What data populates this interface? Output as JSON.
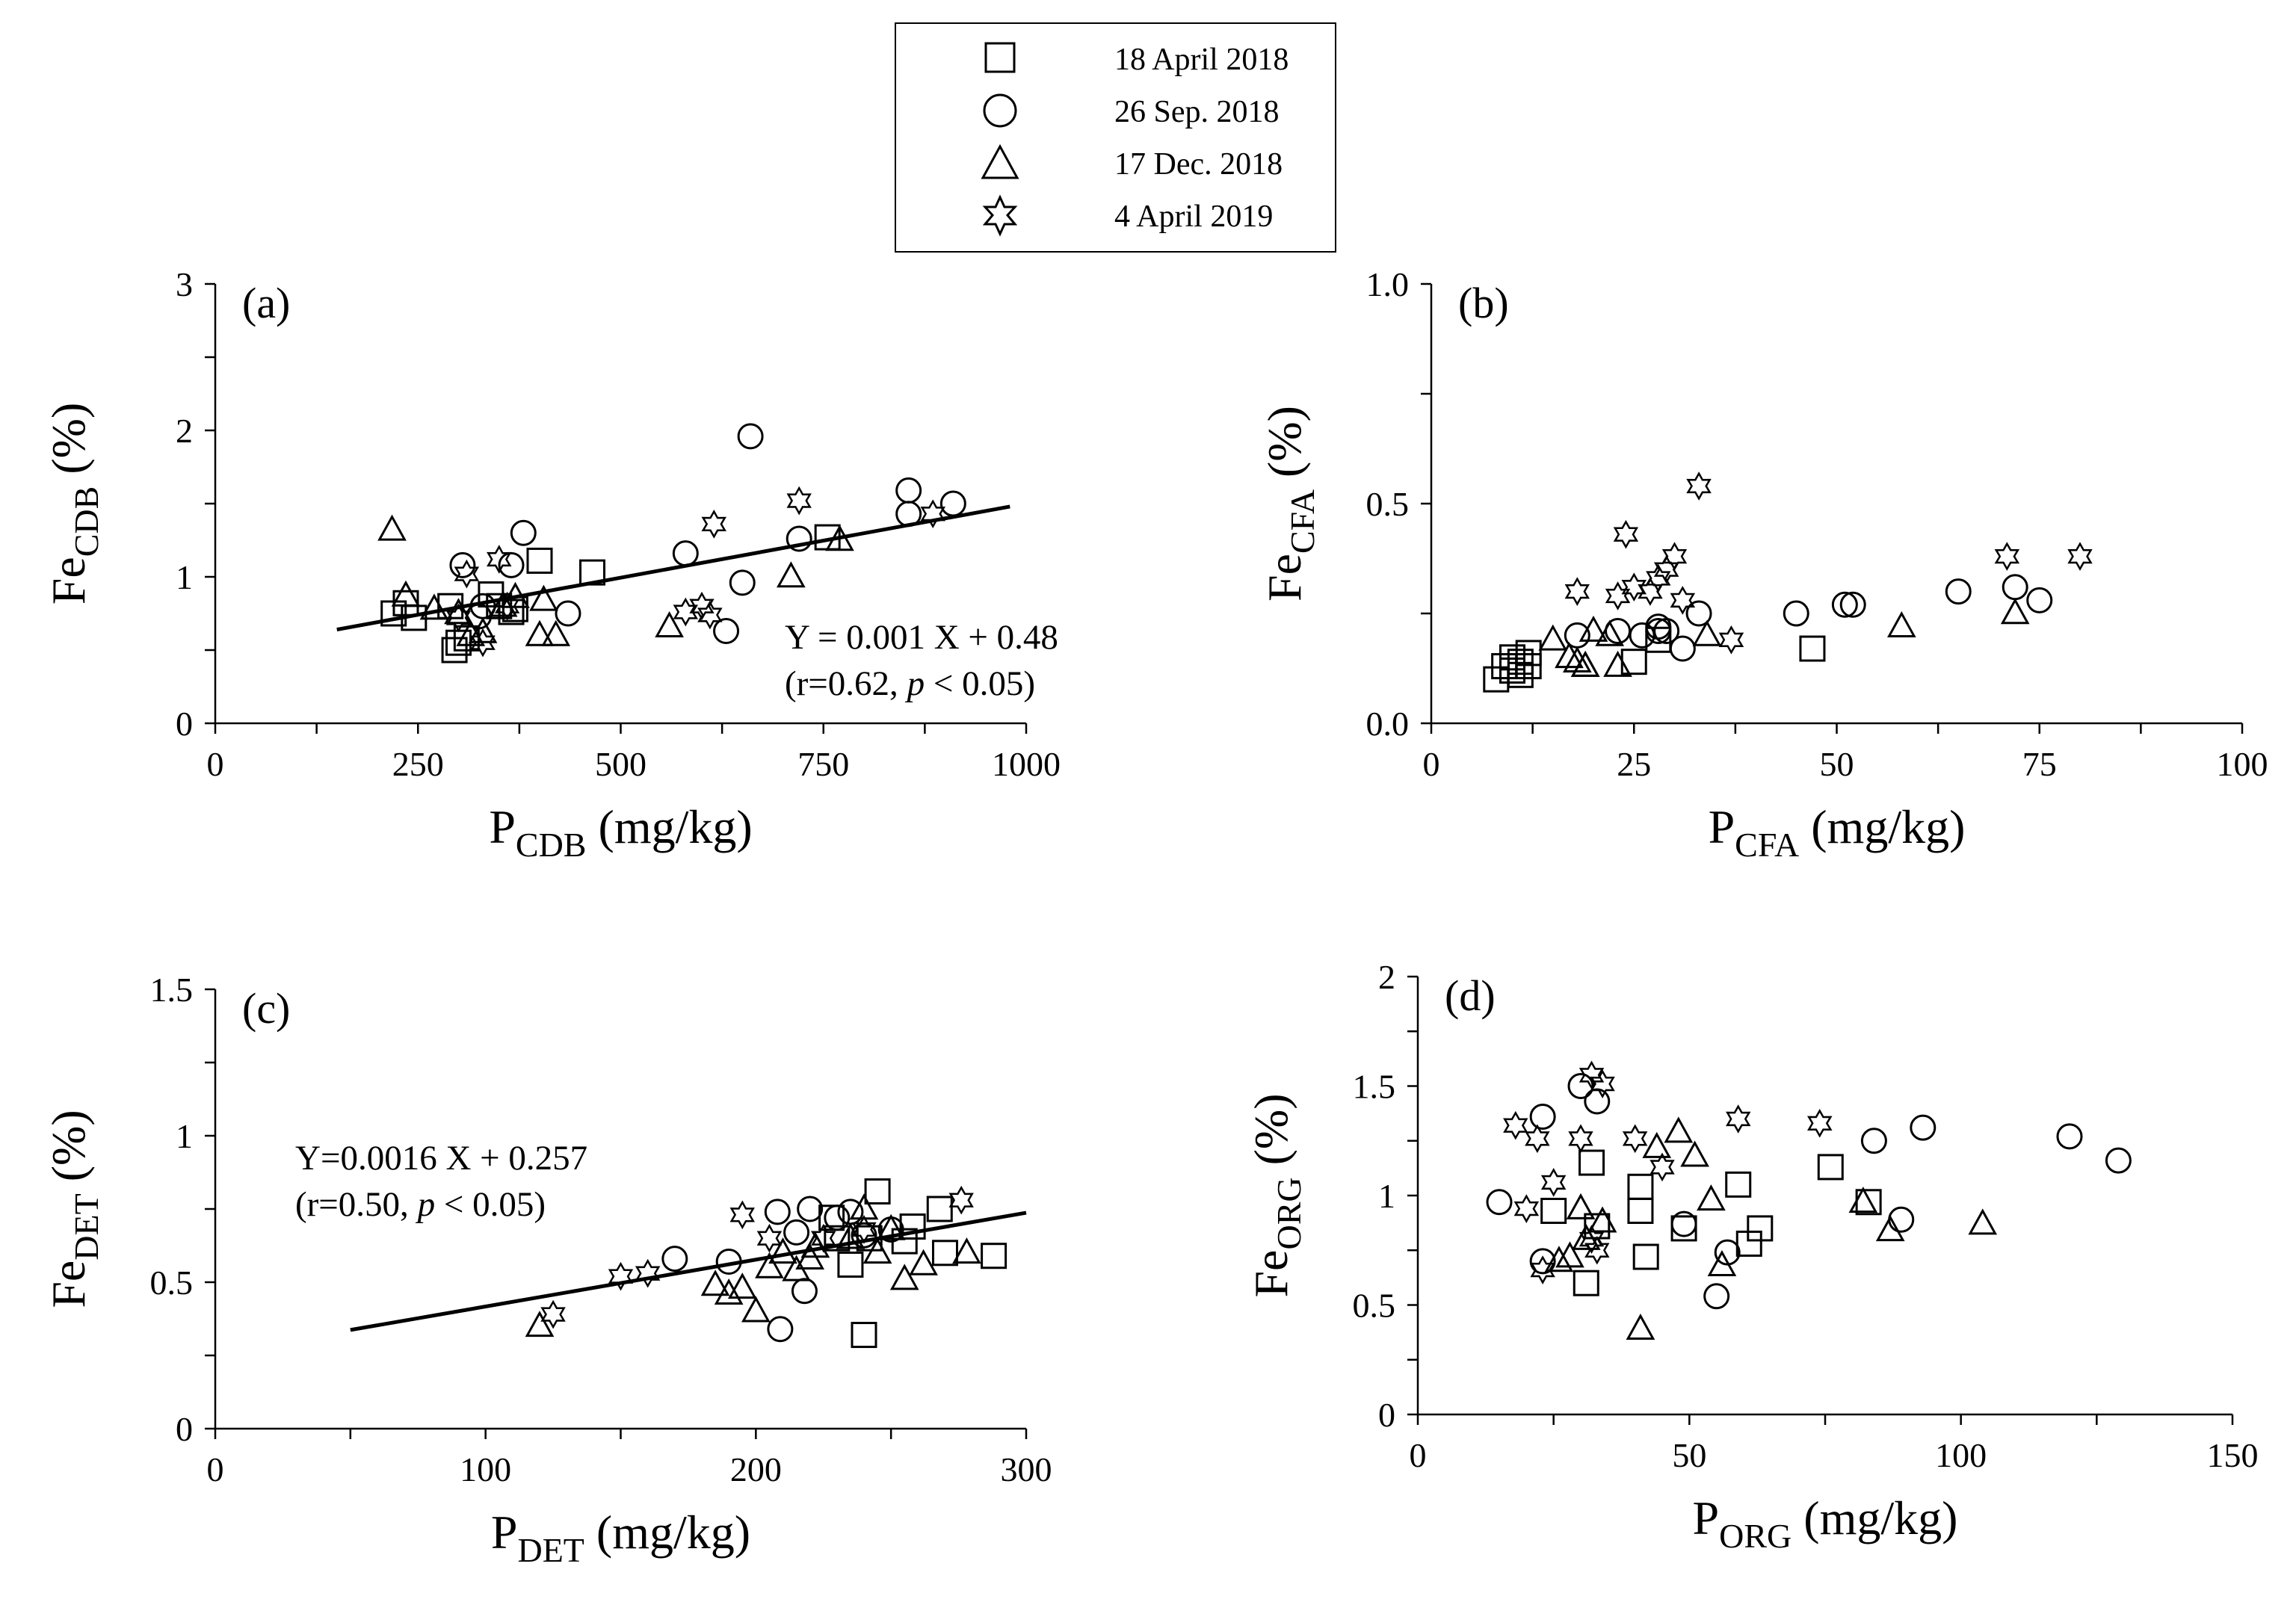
{
  "legend": {
    "entries": [
      {
        "label": "18 April 2018",
        "marker": "square"
      },
      {
        "label": "26 Sep. 2018",
        "marker": "circle"
      },
      {
        "label": "17 Dec. 2018",
        "marker": "triangle"
      },
      {
        "label": "4 April 2019",
        "marker": "star"
      }
    ]
  },
  "chart_data": [
    {
      "type": "scatter",
      "panel_label": "(a)",
      "xlabel": {
        "main": "P",
        "sub": "CDB",
        "unit": " (mg/kg)"
      },
      "ylabel": {
        "main": "Fe",
        "sub": "CDB",
        "unit": " (%)"
      },
      "xlim": [
        0,
        1000
      ],
      "ylim": [
        0,
        3
      ],
      "xticks": [
        "0",
        "250",
        "500",
        "750",
        "1000"
      ],
      "xtick_values": [
        0,
        250,
        500,
        750,
        1000
      ],
      "yticks": [
        "0",
        "1",
        "2",
        "3"
      ],
      "ytick_values": [
        0,
        1,
        2,
        3
      ],
      "xminor": 125,
      "yminor": 0.5,
      "regression": {
        "x": [
          150,
          980
        ],
        "y": [
          0.64,
          1.48
        ]
      },
      "annotation": {
        "line1": "Y = 0.001 X + 0.48",
        "line2_pre": "(r=0.62, ",
        "line2_p": "p",
        "line2_post": " < 0.05)"
      },
      "series": [
        {
          "name": "18 April 2018",
          "marker": "square",
          "x": [
            220,
            235,
            245,
            290,
            295,
            300,
            310,
            340,
            350,
            365,
            370,
            400,
            465,
            755
          ],
          "y": [
            0.75,
            0.82,
            0.72,
            0.8,
            0.5,
            0.55,
            0.58,
            0.88,
            0.8,
            0.76,
            0.78,
            1.11,
            1.03,
            1.27
          ]
        },
        {
          "name": "26 Sep. 2018",
          "marker": "circle",
          "x": [
            305,
            325,
            330,
            365,
            380,
            435,
            580,
            630,
            650,
            660,
            720,
            855,
            855,
            910
          ],
          "y": [
            1.08,
            0.73,
            0.8,
            1.08,
            1.3,
            0.75,
            1.16,
            0.63,
            0.96,
            1.96,
            1.26,
            1.43,
            1.59,
            1.5
          ]
        },
        {
          "name": "17 Dec. 2018",
          "marker": "triangle",
          "x": [
            218,
            235,
            270,
            300,
            315,
            330,
            355,
            370,
            400,
            405,
            420,
            560,
            710,
            770
          ],
          "y": [
            1.32,
            0.87,
            0.78,
            0.75,
            0.6,
            0.62,
            0.8,
            0.86,
            0.6,
            0.84,
            0.6,
            0.66,
            1.0,
            1.25
          ]
        },
        {
          "name": "4 April 2019",
          "marker": "star",
          "x": [
            300,
            310,
            330,
            350,
            360,
            580,
            600,
            610,
            615,
            720,
            885
          ],
          "y": [
            0.72,
            1.02,
            0.55,
            1.12,
            0.8,
            0.76,
            0.8,
            0.74,
            1.36,
            1.52,
            1.43
          ]
        }
      ]
    },
    {
      "type": "scatter",
      "panel_label": "(b)",
      "xlabel": {
        "main": "P",
        "sub": "CFA",
        "unit": " (mg/kg)"
      },
      "ylabel": {
        "main": "Fe",
        "sub": "CFA",
        "unit": " (%)"
      },
      "xlim": [
        0,
        100
      ],
      "ylim": [
        0,
        1
      ],
      "xticks": [
        "0",
        "25",
        "50",
        "75",
        "100"
      ],
      "xtick_values": [
        0,
        25,
        50,
        75,
        100
      ],
      "yticks": [
        "0.0",
        "0.5",
        "1.0"
      ],
      "ytick_values": [
        0,
        0.5,
        1.0
      ],
      "xminor": 12.5,
      "yminor": 0.25,
      "series": [
        {
          "name": "18 April 2018",
          "marker": "square",
          "x": [
            8,
            9,
            10,
            10,
            11,
            11,
            12,
            12,
            25,
            28,
            47
          ],
          "y": [
            0.1,
            0.13,
            0.12,
            0.15,
            0.14,
            0.11,
            0.13,
            0.16,
            0.14,
            0.19,
            0.17
          ]
        },
        {
          "name": "26 Sep. 2018",
          "marker": "circle",
          "x": [
            18,
            23,
            26,
            28,
            28,
            29,
            31,
            33,
            45,
            51,
            52,
            65,
            72,
            75
          ],
          "y": [
            0.2,
            0.21,
            0.2,
            0.21,
            0.22,
            0.21,
            0.17,
            0.25,
            0.25,
            0.27,
            0.27,
            0.3,
            0.31,
            0.28
          ]
        },
        {
          "name": "17 Dec. 2018",
          "marker": "triangle",
          "x": [
            15,
            17,
            18,
            19,
            19,
            20,
            22,
            23,
            34,
            58,
            72
          ],
          "y": [
            0.19,
            0.15,
            0.14,
            0.13,
            0.13,
            0.21,
            0.2,
            0.13,
            0.2,
            0.22,
            0.25
          ]
        },
        {
          "name": "4 April 2019",
          "marker": "star",
          "x": [
            18,
            23,
            24,
            25,
            27,
            28,
            29,
            30,
            31,
            33,
            37,
            71,
            80
          ],
          "y": [
            0.3,
            0.29,
            0.43,
            0.31,
            0.3,
            0.33,
            0.35,
            0.38,
            0.28,
            0.54,
            0.19,
            0.38,
            0.38
          ]
        }
      ]
    },
    {
      "type": "scatter",
      "panel_label": "(c)",
      "xlabel": {
        "main": "P",
        "sub": "DET",
        "unit": " (mg/kg)"
      },
      "ylabel": {
        "main": "Fe",
        "sub": "DET",
        "unit": " (%)"
      },
      "xlim": [
        0,
        300
      ],
      "ylim": [
        0,
        1.5
      ],
      "xticks": [
        "0",
        "100",
        "200",
        "300"
      ],
      "xtick_values": [
        0,
        100,
        200,
        300
      ],
      "yticks": [
        "0",
        "0.5",
        "1",
        "1.5"
      ],
      "ytick_values": [
        0,
        0.5,
        1,
        1.5
      ],
      "xminor": 50,
      "yminor": 0.25,
      "regression": {
        "x": [
          50,
          300
        ],
        "y": [
          0.337,
          0.737
        ]
      },
      "annotation": {
        "line1": "Y=0.0016 X + 0.257",
        "line2_pre": "(r=0.50, ",
        "line2_p": "p",
        "line2_post": " < 0.05)"
      },
      "series": [
        {
          "name": "18 April 2018",
          "marker": "square",
          "x": [
            228,
            230,
            235,
            240,
            242,
            245,
            255,
            258,
            268,
            270,
            288
          ],
          "y": [
            0.72,
            0.65,
            0.56,
            0.32,
            0.65,
            0.81,
            0.64,
            0.69,
            0.75,
            0.6,
            0.59
          ]
        },
        {
          "name": "26 Sep. 2018",
          "marker": "circle",
          "x": [
            170,
            190,
            208,
            209,
            215,
            218,
            220,
            230,
            235,
            240,
            250
          ],
          "y": [
            0.58,
            0.57,
            0.74,
            0.34,
            0.67,
            0.47,
            0.75,
            0.72,
            0.74,
            0.66,
            0.68
          ]
        },
        {
          "name": "17 Dec. 2018",
          "marker": "triangle",
          "x": [
            120,
            185,
            190,
            195,
            200,
            205,
            210,
            215,
            220,
            222,
            235,
            240,
            245,
            250,
            255,
            262,
            278
          ],
          "y": [
            0.35,
            0.49,
            0.46,
            0.48,
            0.4,
            0.55,
            0.6,
            0.54,
            0.58,
            0.62,
            0.65,
            0.75,
            0.6,
            0.68,
            0.51,
            0.56,
            0.6
          ]
        },
        {
          "name": "4 April 2019",
          "marker": "star",
          "x": [
            125,
            150,
            160,
            195,
            205,
            225,
            240,
            276
          ],
          "y": [
            0.39,
            0.52,
            0.53,
            0.73,
            0.65,
            0.65,
            0.68,
            0.78
          ]
        }
      ]
    },
    {
      "type": "scatter",
      "panel_label": "(d)",
      "xlabel": {
        "main": "P",
        "sub": "ORG",
        "unit": " (mg/kg)"
      },
      "ylabel": {
        "main": "Fe",
        "sub": "ORG",
        "unit": " (%)"
      },
      "xlim": [
        0,
        150
      ],
      "ylim": [
        0,
        2
      ],
      "xticks": [
        "0",
        "50",
        "100",
        "150"
      ],
      "xtick_values": [
        0,
        50,
        100,
        150
      ],
      "yticks": [
        "0",
        "0.5",
        "1",
        "1.5",
        "2"
      ],
      "ytick_values": [
        0,
        0.5,
        1,
        1.5,
        2
      ],
      "xminor": 25,
      "yminor": 0.25,
      "series": [
        {
          "name": "18 April 2018",
          "marker": "square",
          "x": [
            25,
            31,
            32,
            33,
            41,
            41,
            42,
            49,
            59,
            61,
            63,
            76,
            83
          ],
          "y": [
            0.93,
            0.6,
            1.15,
            0.86,
            1.04,
            0.93,
            0.72,
            0.85,
            1.05,
            0.78,
            0.85,
            1.13,
            0.97
          ]
        },
        {
          "name": "26 Sep. 2018",
          "marker": "circle",
          "x": [
            15,
            23,
            23,
            30,
            33,
            49,
            55,
            57,
            84,
            89,
            93,
            120,
            129
          ],
          "y": [
            0.97,
            1.36,
            0.7,
            1.5,
            1.43,
            0.87,
            0.54,
            0.74,
            1.25,
            0.89,
            1.31,
            1.27,
            1.16
          ]
        },
        {
          "name": "17 Dec. 2018",
          "marker": "triangle",
          "x": [
            26,
            28,
            30,
            31,
            34,
            41,
            44,
            48,
            51,
            54,
            56,
            82,
            87,
            104
          ],
          "y": [
            0.7,
            0.72,
            0.94,
            0.8,
            0.88,
            0.39,
            1.22,
            1.29,
            1.18,
            0.98,
            0.68,
            0.97,
            0.84,
            0.87
          ]
        },
        {
          "name": "4 April 2019",
          "marker": "star",
          "x": [
            18,
            20,
            22,
            23,
            25,
            30,
            32,
            32,
            33,
            34,
            40,
            45,
            59,
            74
          ],
          "y": [
            1.32,
            0.94,
            1.26,
            0.66,
            1.06,
            1.26,
            1.55,
            0.8,
            0.75,
            1.51,
            1.26,
            1.13,
            1.35,
            1.33
          ]
        }
      ]
    }
  ]
}
